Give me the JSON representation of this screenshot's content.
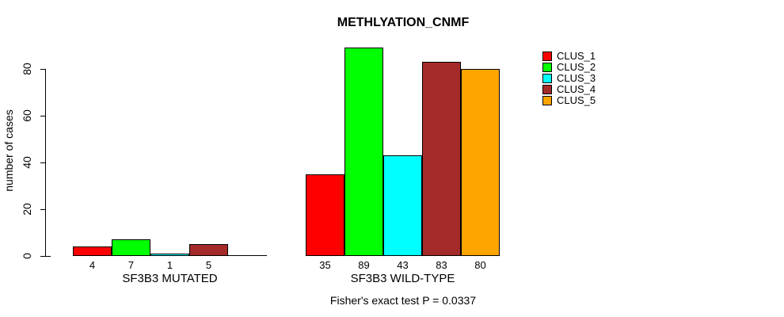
{
  "chart_data": {
    "type": "bar",
    "title": "METHLYATION_CNMF",
    "ylabel": "number of cases",
    "ylim": [
      0,
      89
    ],
    "yticks": [
      0,
      20,
      40,
      60,
      80
    ],
    "grid": false,
    "legend_position": "top-right",
    "clusters": [
      {
        "name": "CLUS_1",
        "color": "#FF0000"
      },
      {
        "name": "CLUS_2",
        "color": "#00FF00"
      },
      {
        "name": "CLUS_3",
        "color": "#00FFFF"
      },
      {
        "name": "CLUS_4",
        "color": "#A52A2A"
      },
      {
        "name": "CLUS_5",
        "color": "#FFA500"
      }
    ],
    "groups": [
      {
        "label": "SF3B3 MUTATED",
        "values": [
          4,
          7,
          1,
          5,
          0
        ],
        "bar_labels": [
          "4",
          "7",
          "1",
          "5",
          ""
        ]
      },
      {
        "label": "SF3B3 WILD-TYPE",
        "values": [
          35,
          89,
          43,
          83,
          80
        ],
        "bar_labels": [
          "35",
          "89",
          "43",
          "83",
          "80"
        ]
      }
    ],
    "annotation": "Fisher's exact test P = 0.0337"
  }
}
